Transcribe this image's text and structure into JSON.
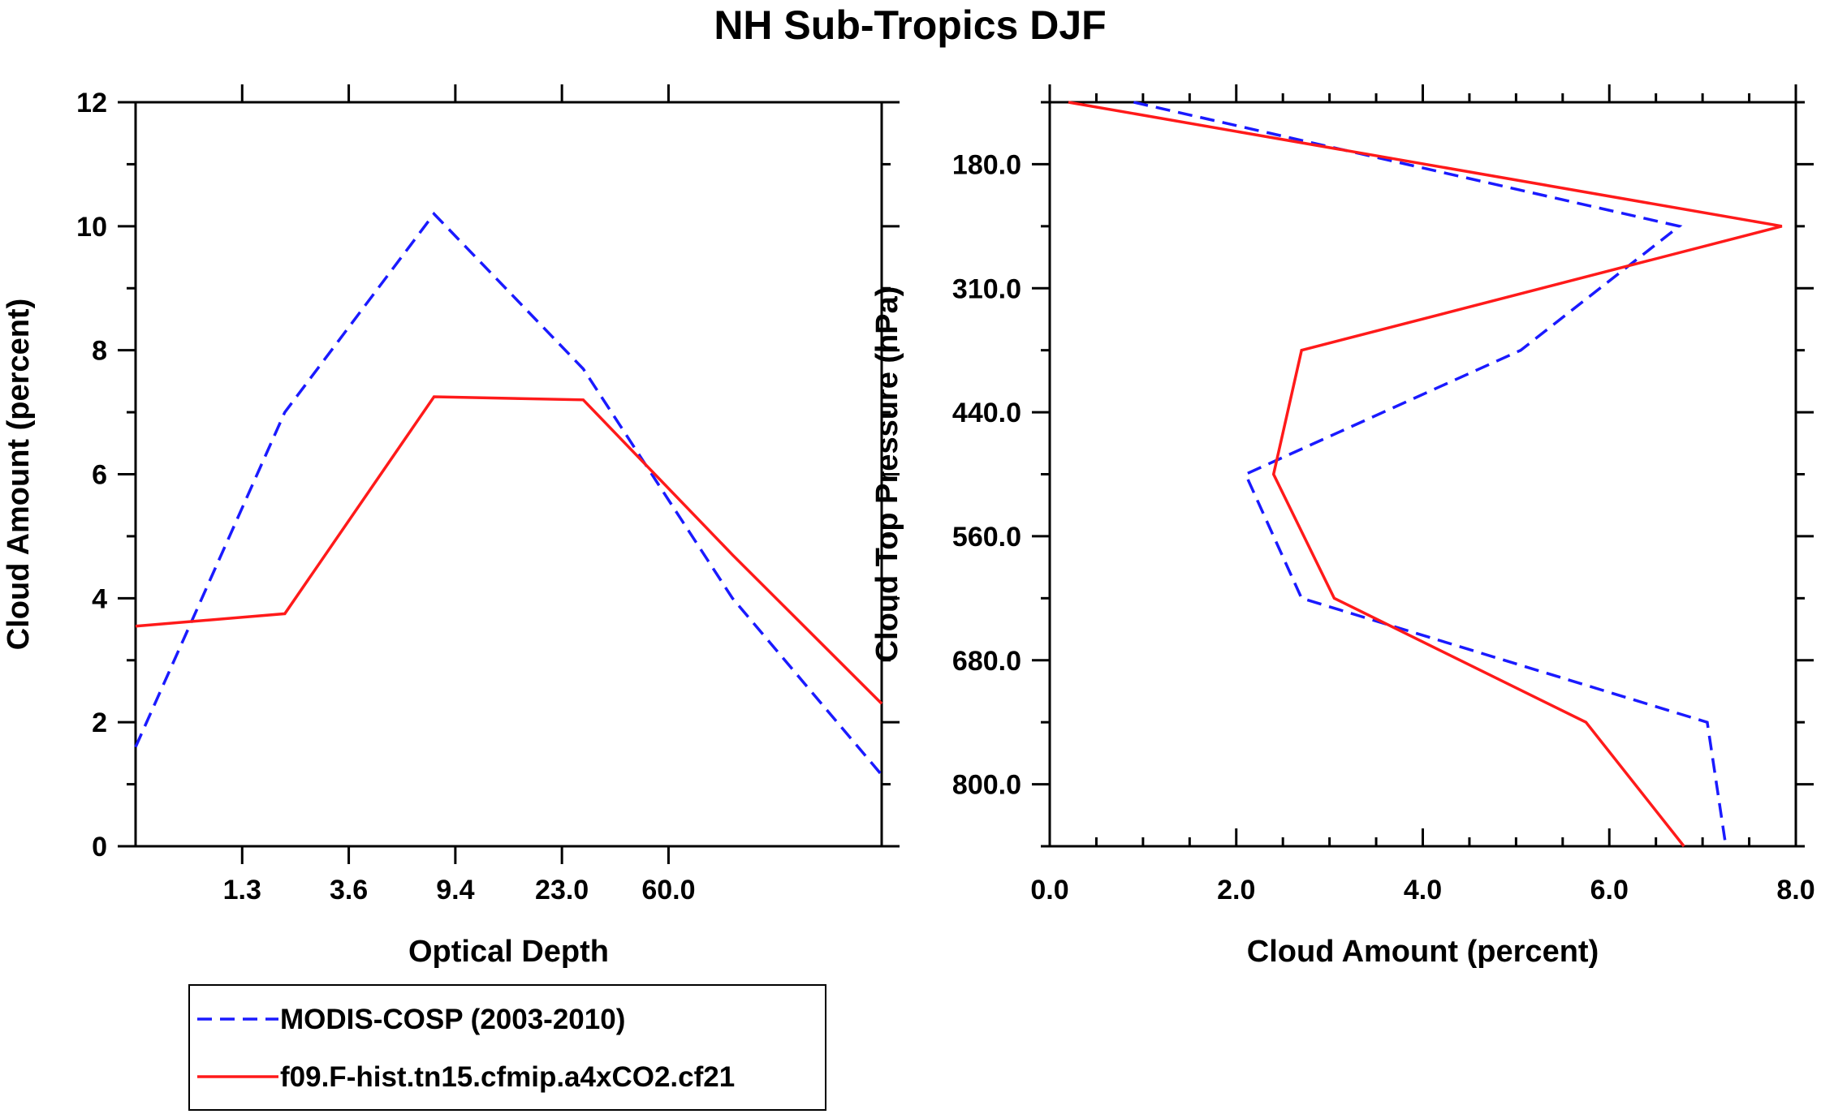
{
  "figure_title": "NH Sub-Tropics DJF",
  "colors": {
    "modis": "#1a1aff",
    "model": "#ff1a1a",
    "axis": "#000000"
  },
  "legend": {
    "entries": [
      {
        "label": "MODIS-COSP (2003-2010)",
        "style": "dashed",
        "color": "#1a1aff"
      },
      {
        "label": "f09.F-hist.tn15.cfmip.a4xCO2.cf21",
        "style": "solid",
        "color": "#ff1a1a"
      }
    ]
  },
  "chart_data": [
    {
      "type": "line",
      "name": "optical-depth-panel",
      "title": "",
      "xlabel": "Optical Depth",
      "ylabel": "Cloud Amount (percent)",
      "xlim": [
        0,
        7
      ],
      "ylim": [
        0,
        12
      ],
      "x_tick_positions": [
        1,
        2,
        3,
        4,
        5
      ],
      "x_tick_labels": [
        "1.3",
        "3.6",
        "9.4",
        "23.0",
        "60.0"
      ],
      "y_ticks": [
        0,
        2,
        4,
        6,
        8,
        10,
        12
      ],
      "y_tick_labels": [
        "0",
        "2",
        "4",
        "6",
        "8",
        "10",
        "12"
      ],
      "x": [
        0,
        1.4,
        2.8,
        4.2,
        5.6,
        7.0
      ],
      "series": [
        {
          "name": "MODIS-COSP (2003-2010)",
          "style": "dashed",
          "values": [
            1.6,
            7.0,
            10.2,
            7.7,
            4.0,
            1.15
          ]
        },
        {
          "name": "f09.F-hist.tn15.cfmip.a4xCO2.cf21",
          "style": "solid",
          "values": [
            3.55,
            3.75,
            7.25,
            7.2,
            4.7,
            2.3
          ]
        }
      ]
    },
    {
      "type": "line",
      "name": "pressure-panel",
      "title": "",
      "xlabel": "Cloud Amount (percent)",
      "ylabel": "Cloud Top Pressure (hPa)",
      "xlim": [
        0,
        8
      ],
      "ylim": [
        0,
        12
      ],
      "x_ticks": [
        0,
        2,
        4,
        6,
        8
      ],
      "x_tick_labels": [
        "0.0",
        "2.0",
        "4.0",
        "6.0",
        "8.0"
      ],
      "y_tick_positions": [
        1,
        3,
        5,
        7,
        9,
        11
      ],
      "y_tick_labels": [
        "180.0",
        "310.0",
        "440.0",
        "560.0",
        "680.0",
        "800.0"
      ],
      "y": [
        0,
        2,
        4,
        6,
        8,
        10,
        12
      ],
      "series": [
        {
          "name": "MODIS-COSP (2003-2010)",
          "style": "dashed",
          "values": [
            0.9,
            6.75,
            5.05,
            2.1,
            2.7,
            7.05,
            7.25
          ]
        },
        {
          "name": "f09.F-hist.tn15.cfmip.a4xCO2.cf21",
          "style": "solid",
          "values": [
            0.2,
            7.85,
            2.7,
            2.4,
            3.05,
            5.75,
            6.8
          ]
        }
      ]
    }
  ]
}
